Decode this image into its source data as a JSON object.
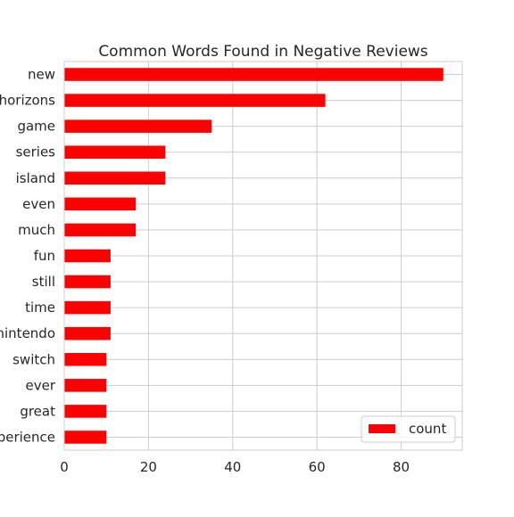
{
  "chart_data": {
    "type": "bar",
    "orientation": "horizontal",
    "title": "Common Words Found in Negative Reviews",
    "xlabel": "",
    "ylabel": "",
    "categories": [
      "new",
      "horizons",
      "game",
      "series",
      "island",
      "even",
      "much",
      "fun",
      "still",
      "time",
      "nintendo",
      "switch",
      "ever",
      "great",
      "experience"
    ],
    "series": [
      {
        "name": "count",
        "color": "#ff0000",
        "values": [
          90,
          62,
          35,
          24,
          24,
          17,
          17,
          11,
          11,
          11,
          11,
          10,
          10,
          10,
          10
        ]
      }
    ],
    "xlim": [
      0,
      94.5
    ],
    "xticks": [
      0,
      20,
      40,
      60,
      80
    ],
    "grid": true,
    "legend_position": "lower-right",
    "style": {
      "grid_color": "#cccccc",
      "spine_color": "#cccccc",
      "text_color": "#262626"
    }
  }
}
